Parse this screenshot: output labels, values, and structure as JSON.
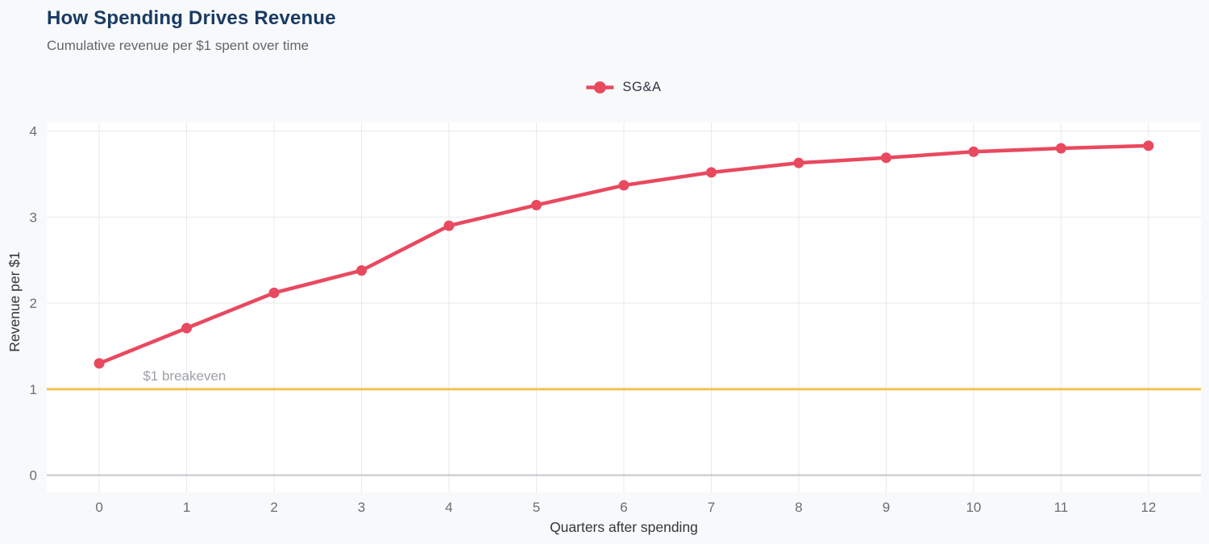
{
  "header": {
    "title": "How Spending Drives Revenue",
    "subtitle": "Cumulative revenue per $1 spent over time"
  },
  "chart_data": {
    "type": "line",
    "title": "How Spending Drives Revenue",
    "subtitle": "Cumulative revenue per $1 spent over time",
    "xlabel": "Quarters after spending",
    "ylabel": "Revenue per $1",
    "x": [
      0,
      1,
      2,
      3,
      4,
      5,
      6,
      7,
      8,
      9,
      10,
      11,
      12
    ],
    "series": [
      {
        "name": "SG&A",
        "color": "#e8495f",
        "values": [
          1.3,
          1.71,
          2.12,
          2.38,
          2.9,
          3.14,
          3.37,
          3.52,
          3.63,
          3.69,
          3.76,
          3.8,
          3.83
        ]
      }
    ],
    "xticks": [
      "0",
      "1",
      "2",
      "3",
      "4",
      "5",
      "6",
      "7",
      "8",
      "9",
      "10",
      "11",
      "12"
    ],
    "yticks": [
      "0",
      "1",
      "2",
      "3",
      "4"
    ],
    "xlim": [
      -0.6,
      12.6
    ],
    "ylim": [
      -0.2,
      4.1
    ],
    "grid": true,
    "legend_position": "top-center",
    "annotations": [
      {
        "label": "$1 breakeven",
        "y": 1,
        "label_x": 0.5,
        "line_color": "#f0c251",
        "label_color": "#9da1a8"
      }
    ],
    "colors": {
      "background": "#f7f9fb",
      "plot_background": "#ffffff",
      "gridline": "#e7e9ec",
      "zero_line": "#c3c7cc",
      "tick_label": "#6a6d72",
      "axis_label": "#33373c",
      "title": "#1a3a63",
      "subtitle": "#63666b",
      "legend_text": "#2e3340"
    }
  }
}
